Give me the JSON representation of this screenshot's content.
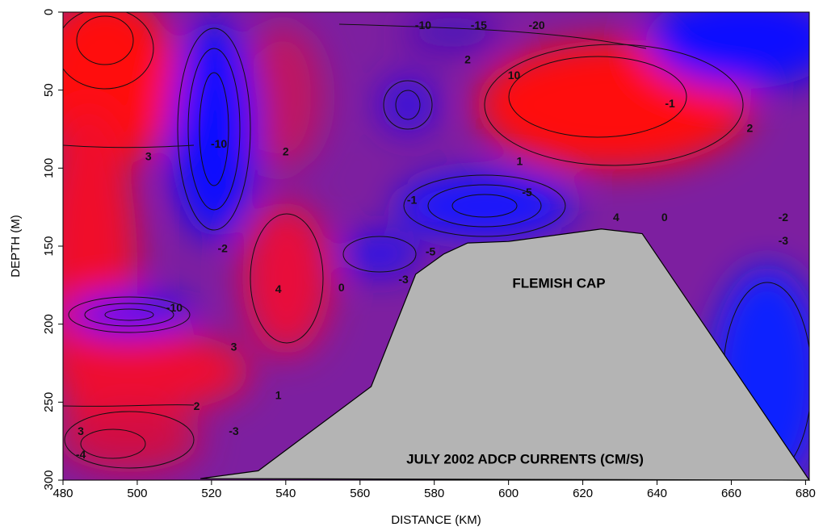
{
  "chart_data": {
    "type": "contour",
    "xlabel": "DISTANCE (KM)",
    "ylabel": "DEPTH (M)",
    "xlim": [
      480,
      681
    ],
    "xticks": [
      480,
      500,
      520,
      540,
      560,
      580,
      600,
      620,
      640,
      660,
      680
    ],
    "ylim": [
      300,
      0
    ],
    "yticks": [
      0,
      50,
      100,
      150,
      200,
      250,
      300
    ],
    "annotations": [
      "FLEMISH CAP",
      "JULY 2002 ADCP CURRENTS (CM/S)"
    ],
    "bathymetry": {
      "x": [
        517,
        532.6,
        563,
        575,
        582.6,
        589,
        600,
        625,
        636,
        681
      ],
      "y": [
        299,
        294,
        240,
        168,
        155,
        148,
        147,
        139,
        142,
        300
      ],
      "color": "#b4b4b4"
    },
    "contour_labels": [
      {
        "x": 522,
        "y": 85,
        "value": -10
      },
      {
        "x": 510,
        "y": 190,
        "value": -10
      },
      {
        "x": 605,
        "y": 116,
        "value": -5
      },
      {
        "x": 579,
        "y": 154,
        "value": -5
      },
      {
        "x": 601.5,
        "y": 41,
        "value": 10
      },
      {
        "x": 577,
        "y": 9,
        "value": -10
      },
      {
        "x": 592,
        "y": 9,
        "value": -15
      },
      {
        "x": 607.6,
        "y": 9,
        "value": -20
      },
      {
        "x": 589,
        "y": 31,
        "value": 2
      },
      {
        "x": 574,
        "y": 121,
        "value": -1
      },
      {
        "x": 629,
        "y": 132,
        "value": 4
      },
      {
        "x": 555,
        "y": 177,
        "value": 0
      },
      {
        "x": 571.7,
        "y": 172,
        "value": -3
      },
      {
        "x": 526,
        "y": 215,
        "value": 3
      },
      {
        "x": 538,
        "y": 246,
        "value": 1
      },
      {
        "x": 526,
        "y": 269,
        "value": -3
      },
      {
        "x": 516,
        "y": 253,
        "value": 2
      },
      {
        "x": 484.8,
        "y": 269,
        "value": 3
      },
      {
        "x": 674,
        "y": 132,
        "value": -2
      },
      {
        "x": 674,
        "y": 147,
        "value": -3
      },
      {
        "x": 665,
        "y": 75,
        "value": 2
      },
      {
        "x": 643.5,
        "y": 59,
        "value": -1
      },
      {
        "x": 538,
        "y": 178,
        "value": 4
      },
      {
        "x": 540,
        "y": 90,
        "value": 2
      },
      {
        "x": 523,
        "y": 152,
        "value": -2
      },
      {
        "x": 642,
        "y": 132,
        "value": 0
      },
      {
        "x": 603,
        "y": 96,
        "value": 1
      },
      {
        "x": 484.8,
        "y": 284,
        "value": -4
      },
      {
        "x": 503,
        "y": 93,
        "value": 3
      }
    ]
  }
}
